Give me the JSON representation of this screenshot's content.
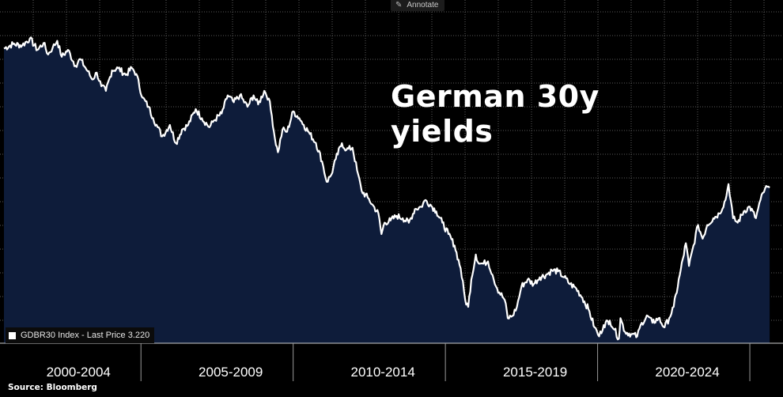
{
  "toolbar": {
    "annotate_label": "Annotate"
  },
  "source_label": "Source: Bloomberg",
  "colors": {
    "background": "#000000",
    "area_fill": "#0e1c3a",
    "line": "#ffffff",
    "grid": "#5a5a5a"
  },
  "chart_data": {
    "type": "area",
    "title": "German 30y yields",
    "legend_entry": "GDBR30 Index - Last Price 3.220",
    "legend_placement": "bottom-left",
    "grid": true,
    "x_range": [
      2000.0,
      2025.2
    ],
    "y_range": [
      -0.2,
      7.0
    ],
    "x_tick_labels": [
      {
        "label": "2000-2004",
        "center": 2002.5
      },
      {
        "label": "2005-2009",
        "center": 2007.5
      },
      {
        "label": "2010-2014",
        "center": 2012.5
      },
      {
        "label": "2015-2019",
        "center": 2017.5
      },
      {
        "label": "2020-2024",
        "center": 2022.5
      }
    ],
    "x_separators": [
      2004.5,
      2009.5,
      2014.5,
      2019.5,
      2024.5
    ],
    "series": [
      {
        "name": "GDBR30 Index",
        "points": [
          [
            2000.0,
            6.28
          ],
          [
            2000.3,
            6.38
          ],
          [
            2000.6,
            6.35
          ],
          [
            2000.85,
            6.5
          ],
          [
            2001.1,
            6.25
          ],
          [
            2001.3,
            6.4
          ],
          [
            2001.45,
            6.15
          ],
          [
            2001.6,
            6.3
          ],
          [
            2001.75,
            6.45
          ],
          [
            2001.9,
            6.1
          ],
          [
            2002.1,
            6.25
          ],
          [
            2002.35,
            5.9
          ],
          [
            2002.5,
            6.05
          ],
          [
            2002.75,
            5.78
          ],
          [
            2002.9,
            5.6
          ],
          [
            2003.05,
            5.75
          ],
          [
            2003.2,
            5.45
          ],
          [
            2003.35,
            5.35
          ],
          [
            2003.55,
            5.8
          ],
          [
            2003.75,
            5.85
          ],
          [
            2004.0,
            5.7
          ],
          [
            2004.2,
            5.85
          ],
          [
            2004.35,
            5.72
          ],
          [
            2004.55,
            5.2
          ],
          [
            2004.75,
            5.0
          ],
          [
            2004.9,
            4.75
          ],
          [
            2005.05,
            4.55
          ],
          [
            2005.2,
            4.35
          ],
          [
            2005.45,
            4.6
          ],
          [
            2005.65,
            4.2
          ],
          [
            2005.85,
            4.5
          ],
          [
            2006.05,
            4.6
          ],
          [
            2006.3,
            4.95
          ],
          [
            2006.5,
            4.75
          ],
          [
            2006.75,
            4.55
          ],
          [
            2006.9,
            4.7
          ],
          [
            2007.15,
            4.85
          ],
          [
            2007.35,
            5.25
          ],
          [
            2007.55,
            5.1
          ],
          [
            2007.75,
            5.25
          ],
          [
            2008.0,
            5.0
          ],
          [
            2008.2,
            5.25
          ],
          [
            2008.35,
            5.05
          ],
          [
            2008.55,
            5.35
          ],
          [
            2008.7,
            5.18
          ],
          [
            2008.8,
            4.8
          ],
          [
            2008.9,
            4.3
          ],
          [
            2009.0,
            4.0
          ],
          [
            2009.15,
            4.5
          ],
          [
            2009.3,
            4.45
          ],
          [
            2009.5,
            4.9
          ],
          [
            2009.7,
            4.75
          ],
          [
            2009.85,
            4.6
          ],
          [
            2010.05,
            4.4
          ],
          [
            2010.25,
            4.2
          ],
          [
            2010.45,
            3.8
          ],
          [
            2010.6,
            3.35
          ],
          [
            2010.75,
            3.5
          ],
          [
            2010.9,
            3.85
          ],
          [
            2011.1,
            4.2
          ],
          [
            2011.25,
            4.05
          ],
          [
            2011.45,
            4.1
          ],
          [
            2011.6,
            3.6
          ],
          [
            2011.75,
            3.15
          ],
          [
            2011.95,
            3.0
          ],
          [
            2012.1,
            2.85
          ],
          [
            2012.3,
            2.65
          ],
          [
            2012.4,
            2.2
          ],
          [
            2012.5,
            2.45
          ],
          [
            2012.7,
            2.5
          ],
          [
            2012.9,
            2.6
          ],
          [
            2013.1,
            2.55
          ],
          [
            2013.3,
            2.45
          ],
          [
            2013.5,
            2.75
          ],
          [
            2013.7,
            2.8
          ],
          [
            2013.85,
            2.95
          ],
          [
            2014.0,
            2.85
          ],
          [
            2014.2,
            2.7
          ],
          [
            2014.4,
            2.45
          ],
          [
            2014.6,
            2.2
          ],
          [
            2014.8,
            1.95
          ],
          [
            2015.0,
            1.45
          ],
          [
            2015.15,
            0.75
          ],
          [
            2015.25,
            0.6
          ],
          [
            2015.35,
            1.2
          ],
          [
            2015.5,
            1.75
          ],
          [
            2015.6,
            1.55
          ],
          [
            2015.75,
            1.55
          ],
          [
            2015.9,
            1.6
          ],
          [
            2016.05,
            1.3
          ],
          [
            2016.2,
            1.0
          ],
          [
            2016.45,
            0.75
          ],
          [
            2016.55,
            0.35
          ],
          [
            2016.7,
            0.4
          ],
          [
            2016.85,
            0.6
          ],
          [
            2017.0,
            1.05
          ],
          [
            2017.2,
            1.2
          ],
          [
            2017.4,
            1.1
          ],
          [
            2017.6,
            1.25
          ],
          [
            2017.8,
            1.3
          ],
          [
            2018.0,
            1.4
          ],
          [
            2018.2,
            1.38
          ],
          [
            2018.4,
            1.25
          ],
          [
            2018.6,
            1.1
          ],
          [
            2018.8,
            1.0
          ],
          [
            2019.0,
            0.8
          ],
          [
            2019.2,
            0.55
          ],
          [
            2019.4,
            0.15
          ],
          [
            2019.55,
            -0.05
          ],
          [
            2019.7,
            0.2
          ],
          [
            2019.9,
            0.3
          ],
          [
            2020.05,
            0.1
          ],
          [
            2020.2,
            -0.1
          ],
          [
            2020.25,
            0.35
          ],
          [
            2020.4,
            0.05
          ],
          [
            2020.6,
            0.0
          ],
          [
            2020.8,
            -0.05
          ],
          [
            2020.95,
            0.25
          ],
          [
            2021.15,
            0.4
          ],
          [
            2021.3,
            0.25
          ],
          [
            2021.5,
            0.35
          ],
          [
            2021.7,
            0.15
          ],
          [
            2021.85,
            0.35
          ],
          [
            2022.0,
            0.6
          ],
          [
            2022.2,
            1.3
          ],
          [
            2022.4,
            2.0
          ],
          [
            2022.5,
            1.5
          ],
          [
            2022.65,
            1.95
          ],
          [
            2022.8,
            2.4
          ],
          [
            2022.95,
            2.1
          ],
          [
            2023.1,
            2.4
          ],
          [
            2023.3,
            2.55
          ],
          [
            2023.5,
            2.65
          ],
          [
            2023.7,
            2.95
          ],
          [
            2023.8,
            3.3
          ],
          [
            2023.95,
            2.55
          ],
          [
            2024.1,
            2.45
          ],
          [
            2024.3,
            2.7
          ],
          [
            2024.5,
            2.8
          ],
          [
            2024.7,
            2.55
          ],
          [
            2024.85,
            2.95
          ],
          [
            2025.0,
            3.2
          ],
          [
            2025.15,
            3.22
          ]
        ]
      }
    ]
  }
}
